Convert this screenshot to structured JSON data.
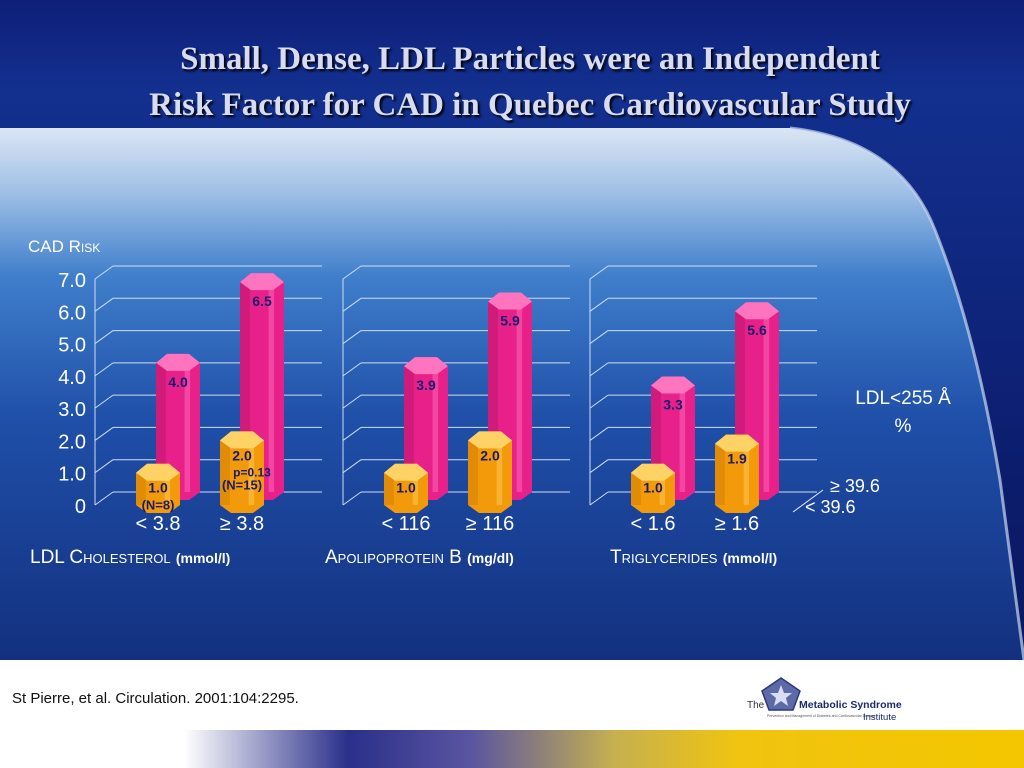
{
  "slide": {
    "title_line1": "Small, Dense, LDL Particles were an Independent",
    "title_line2": "Risk Factor for CAD in Quebec Cardiovascular Study",
    "citation": "St Pierre, et al. Circulation. 2001:104:2295.",
    "logo": {
      "the": "The",
      "main": "Metabolic Syndrome",
      "institute": "Institute",
      "tagline": "Prevention and Management of Diabetes and Cardiovascular Disease"
    }
  },
  "colors": {
    "high_series": "#e8218a",
    "low_series": "#f39a0a",
    "panel": "#2860b8",
    "axis_text": "#ffffff"
  },
  "chart_data": {
    "type": "bar",
    "ylabel": "CAD Risk",
    "ylim": [
      0,
      7
    ],
    "yticks": [
      "0",
      "1.0",
      "2.0",
      "3.0",
      "4.0",
      "5.0",
      "6.0",
      "7.0"
    ],
    "series": [
      {
        "name": "≥ 39.6"
      },
      {
        "name": "< 39.6"
      }
    ],
    "depth_axis_title_line1": "LDL<255 Å",
    "depth_axis_title_line2": "%",
    "groups": [
      {
        "xlabel_main": "LDL Cholesterol",
        "xlabel_unit": "(mmol/l)",
        "categories": [
          "< 3.8",
          "≥ 3.8"
        ],
        "high": [
          {
            "value": 4.0,
            "label": "4.0"
          },
          {
            "value": 6.5,
            "label": "6.5"
          }
        ],
        "low": [
          {
            "value": 1.0,
            "label": "1.0",
            "label2": "(N=8)"
          },
          {
            "value": 2.0,
            "label": "2.0",
            "label2": "(N=15)",
            "note": "p=0.13"
          }
        ]
      },
      {
        "xlabel_main": "Apolipoprotein B",
        "xlabel_unit": "(mg/dl)",
        "categories": [
          "< 116",
          "≥ 116"
        ],
        "high": [
          {
            "value": 3.9,
            "label": "3.9"
          },
          {
            "value": 5.9,
            "label": "5.9"
          }
        ],
        "low": [
          {
            "value": 1.0,
            "label": "1.0"
          },
          {
            "value": 2.0,
            "label": "2.0"
          }
        ]
      },
      {
        "xlabel_main": "Triglycerides",
        "xlabel_unit": "(mmol/l)",
        "categories": [
          "< 1.6",
          "≥ 1.6"
        ],
        "high": [
          {
            "value": 3.3,
            "label": "3.3"
          },
          {
            "value": 5.6,
            "label": "5.6"
          }
        ],
        "low": [
          {
            "value": 1.0,
            "label": "1.0"
          },
          {
            "value": 1.9,
            "label": "1.9"
          }
        ]
      }
    ]
  }
}
